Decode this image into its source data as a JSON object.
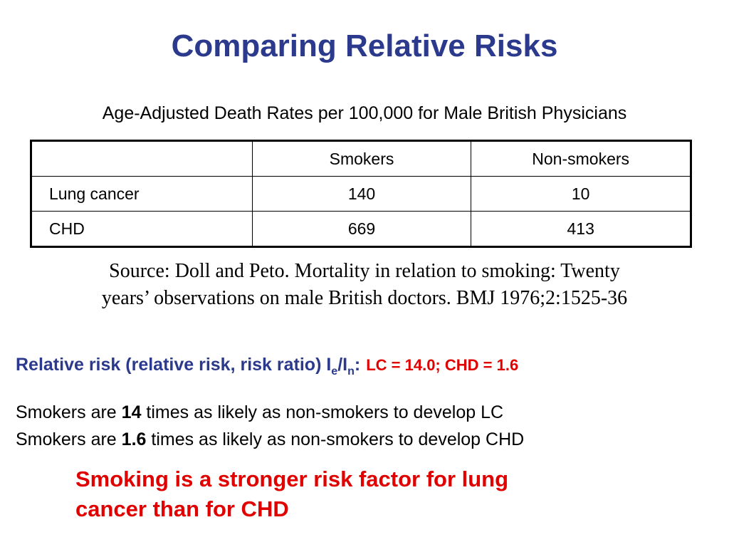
{
  "title": "Comparing Relative Risks",
  "subtitle": "Age-Adjusted Death Rates per 100,000 for Male British Physicians",
  "table": {
    "headers": [
      "",
      "Smokers",
      "Non-smokers"
    ],
    "rows": [
      {
        "label": "Lung cancer",
        "smokers": "140",
        "non_smokers": "10"
      },
      {
        "label": "CHD",
        "smokers": "669",
        "non_smokers": "413"
      }
    ]
  },
  "source": {
    "line1": "Source: Doll and Peto. Mortality in relation to smoking: Twenty",
    "line2": "years’ observations on male British doctors. BMJ 1976;2:1525-36"
  },
  "relative_risk": {
    "label": "Relative risk (relative risk, risk ratio) I",
    "sub_e": "e",
    "slash": "/I",
    "sub_n": "n",
    "colon": ":",
    "result": "LC = 14.0; CHD = 1.6"
  },
  "statements": [
    {
      "prefix": "Smokers are ",
      "value": "14",
      "suffix": " times as likely as non-smokers to develop LC"
    },
    {
      "prefix": "Smokers are ",
      "value": "1.6",
      "suffix": " times as likely as non-smokers to develop CHD"
    }
  ],
  "conclusion": {
    "line1": "Smoking is a stronger risk factor for lung",
    "line2": "cancer than for CHD"
  },
  "colors": {
    "title": "#2b3a8c",
    "emphasis": "#e00000"
  }
}
